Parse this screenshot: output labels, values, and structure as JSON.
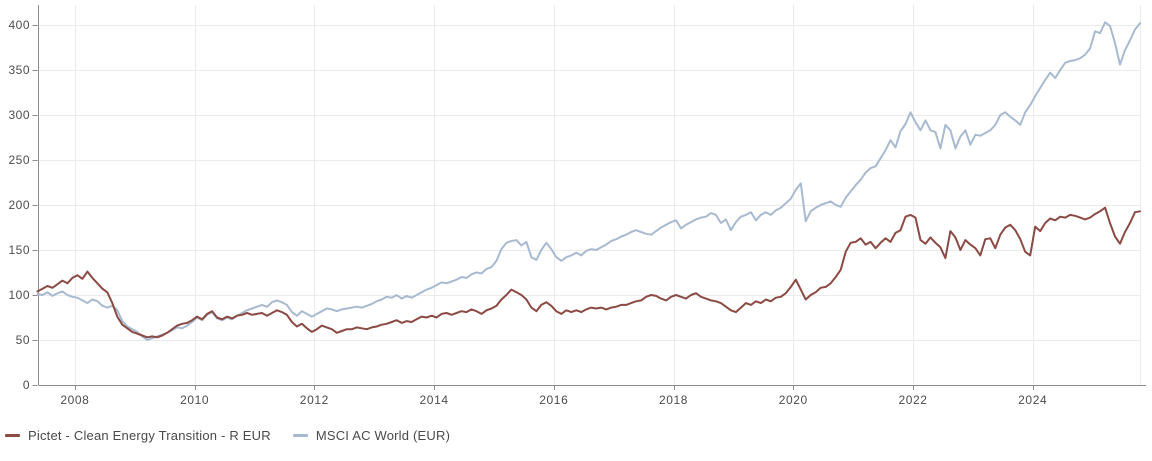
{
  "chart_data": {
    "type": "line",
    "title": "",
    "xlabel": "",
    "ylabel": "",
    "x_axis": {
      "start": 2007.375,
      "end": 2025.792,
      "step": 0.0833333,
      "ticks": [
        2008,
        2010,
        2012,
        2014,
        2016,
        2018,
        2020,
        2022,
        2024
      ]
    },
    "y_axis": {
      "min": 0,
      "max": 422,
      "ticks": [
        0,
        50,
        100,
        150,
        200,
        250,
        300,
        350,
        400
      ]
    },
    "grid": true,
    "legend_position": "bottom-left",
    "series": [
      {
        "name": "Pictet - Clean Energy Transition - R EUR",
        "color": "#8b4a43",
        "values": [
          104,
          107,
          110,
          108,
          112,
          116,
          113,
          119,
          122,
          118,
          126,
          119,
          113,
          107,
          103,
          91,
          76,
          67,
          63,
          59,
          57,
          55,
          53,
          54,
          53,
          55,
          58,
          62,
          66,
          68,
          69,
          72,
          76,
          73,
          79,
          82,
          75,
          73,
          76,
          74,
          77,
          78,
          80,
          78,
          79,
          80,
          77,
          80,
          83,
          81,
          78,
          70,
          65,
          68,
          63,
          59,
          62,
          66,
          64,
          62,
          58,
          60,
          62,
          62,
          64,
          63,
          62,
          64,
          65,
          67,
          68,
          70,
          72,
          69,
          71,
          70,
          73,
          76,
          75,
          77,
          75,
          79,
          80,
          78,
          80,
          82,
          81,
          84,
          82,
          79,
          83,
          85,
          88,
          95,
          100,
          106,
          103,
          100,
          95,
          86,
          82,
          89,
          92,
          88,
          82,
          79,
          83,
          81,
          83,
          81,
          84,
          86,
          85,
          86,
          84,
          86,
          87,
          89,
          89,
          91,
          93,
          94,
          98,
          100,
          99,
          96,
          94,
          98,
          100,
          98,
          96,
          100,
          102,
          98,
          96,
          94,
          93,
          91,
          87,
          83,
          81,
          86,
          91,
          89,
          93,
          91,
          95,
          93,
          97,
          98,
          102,
          109,
          117,
          106,
          95,
          100,
          103,
          108,
          109,
          113,
          120,
          128,
          148,
          158,
          159,
          163,
          156,
          159,
          152,
          158,
          163,
          159,
          169,
          172,
          187,
          189,
          186,
          161,
          157,
          164,
          158,
          153,
          141,
          171,
          164,
          150,
          161,
          156,
          152,
          144,
          162,
          163,
          152,
          167,
          175,
          178,
          172,
          162,
          148,
          144,
          176,
          171,
          180,
          185,
          183,
          187,
          186,
          189,
          188,
          186,
          184,
          186,
          190,
          193,
          197,
          180,
          165,
          157,
          170,
          180,
          192,
          193
        ]
      },
      {
        "name": "MSCI AC World (EUR)",
        "color": "#a8bad0",
        "values": [
          101,
          100,
          103,
          99,
          102,
          104,
          100,
          98,
          97,
          94,
          91,
          95,
          93,
          88,
          86,
          88,
          83,
          71,
          65,
          62,
          59,
          54,
          50,
          52,
          54,
          56,
          58,
          61,
          64,
          63,
          66,
          70,
          75,
          72,
          78,
          81,
          74,
          72,
          75,
          73,
          77,
          80,
          83,
          85,
          87,
          89,
          87,
          92,
          94,
          92,
          89,
          81,
          77,
          82,
          79,
          76,
          79,
          82,
          85,
          84,
          82,
          84,
          85,
          86,
          87,
          86,
          88,
          90,
          93,
          95,
          98,
          97,
          100,
          96,
          99,
          97,
          100,
          103,
          106,
          108,
          111,
          114,
          113,
          115,
          117,
          120,
          119,
          123,
          125,
          124,
          129,
          131,
          138,
          151,
          158,
          160,
          161,
          155,
          159,
          142,
          139,
          150,
          158,
          151,
          142,
          138,
          142,
          144,
          147,
          144,
          149,
          151,
          150,
          153,
          156,
          160,
          162,
          165,
          167,
          170,
          172,
          170,
          168,
          167,
          171,
          175,
          178,
          181,
          183,
          174,
          178,
          181,
          184,
          186,
          187,
          191,
          189,
          180,
          184,
          172,
          181,
          187,
          189,
          192,
          183,
          189,
          192,
          189,
          194,
          197,
          202,
          207,
          217,
          224,
          182,
          193,
          197,
          200,
          202,
          204,
          200,
          198,
          208,
          215,
          222,
          228,
          236,
          241,
          243,
          252,
          261,
          272,
          264,
          282,
          290,
          303,
          292,
          283,
          294,
          283,
          281,
          263,
          289,
          283,
          263,
          276,
          283,
          267,
          278,
          277,
          280,
          283,
          289,
          300,
          303,
          298,
          294,
          289,
          303,
          311,
          321,
          330,
          339,
          347,
          341,
          350,
          358,
          360,
          361,
          363,
          367,
          374,
          393,
          391,
          403,
          399,
          380,
          356,
          372,
          383,
          395,
          402
        ]
      }
    ]
  },
  "colors": {
    "grid": "#ebebeb",
    "axis": "#8c8c8c",
    "tick_label": "#4d4d4d",
    "legend_text": "#4a4a4a",
    "background": "#ffffff"
  }
}
